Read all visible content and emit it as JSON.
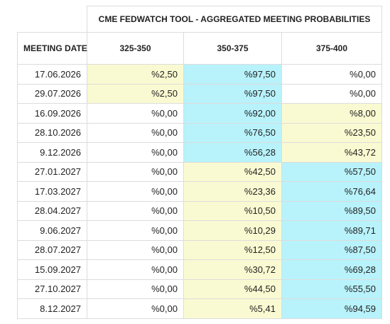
{
  "table": {
    "title": "CME FEDWATCH TOOL - AGGREGATED MEETING PROBABILITIES",
    "header": [
      "MEETING DATE",
      "325-350",
      "350-375",
      "375-400"
    ],
    "rows": [
      [
        "17.06.2026",
        "%2,50",
        "%97,50",
        "%0,00"
      ],
      [
        "29.07.2026",
        "%2,50",
        "%97,50",
        "%0,00"
      ],
      [
        "16.09.2026",
        "%0,00",
        "%92,00",
        "%8,00"
      ],
      [
        "28.10.2026",
        "%0,00",
        "%76,50",
        "%23,50"
      ],
      [
        "9.12.2026",
        "%0,00",
        "%56,28",
        "%43,72"
      ],
      [
        "27.01.2027",
        "%0,00",
        "%42,50",
        "%57,50"
      ],
      [
        "17.03.2027",
        "%0,00",
        "%23,36",
        "%76,64"
      ],
      [
        "28.04.2027",
        "%0,00",
        "%10,50",
        "%89,50"
      ],
      [
        "9.06.2027",
        "%0,00",
        "%10,29",
        "%89,71"
      ],
      [
        "28.07.2027",
        "%0,00",
        "%12,50",
        "%87,50"
      ],
      [
        "15.09.2027",
        "%0,00",
        "%30,72",
        "%69,28"
      ],
      [
        "27.10.2027",
        "%0,00",
        "%44,50",
        "%55,50"
      ],
      [
        "8.12.2027",
        "%0,00",
        "%5,41",
        "%94,59"
      ]
    ]
  }
}
